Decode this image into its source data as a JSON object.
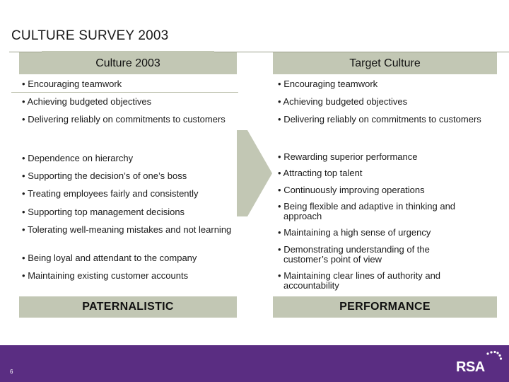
{
  "title": "CULTURE SURVEY 2003",
  "left_column": {
    "header": "Culture 2003",
    "items": [
      "Encouraging teamwork",
      "Achieving budgeted objectives",
      "Delivering reliably on commitments to customers",
      "Dependence on hierarchy",
      "Supporting the decision’s of one’s boss",
      "Treating employees fairly and consistently",
      "Supporting top management decisions",
      "Tolerating well-meaning mistakes and not learning",
      "Being loyal and attendant to the company",
      "Maintaining existing customer accounts"
    ],
    "footer": "PATERNALISTIC"
  },
  "right_column": {
    "header": "Target Culture",
    "items": [
      "Encouraging teamwork",
      "Achieving budgeted objectives",
      "Delivering reliably on commitments to customers",
      "Rewarding superior performance",
      "Attracting top talent",
      "Continuously improving operations",
      "Being flexible and adaptive in thinking and approach",
      "Maintaining a high sense of urgency",
      "Demonstrating understanding of the customer’s point of view",
      "Maintaining clear lines of authority and accountability"
    ],
    "footer": "PERFORMANCE"
  },
  "bullet": "•",
  "page_number": "6",
  "logo_text": "RSA",
  "colors": {
    "header_fill": "#c2c7b4",
    "arrow_fill": "#c2c7b4",
    "footer_bar": "#5a2d82"
  },
  "icons": [
    "right-arrow-icon",
    "rsa-logo-icon"
  ]
}
